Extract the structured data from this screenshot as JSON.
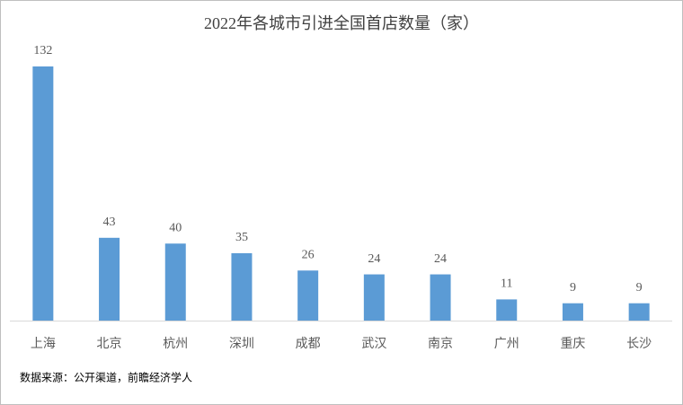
{
  "chart_data": {
    "type": "bar",
    "title": "2022年各城市引进全国首店数量（家）",
    "categories": [
      "上海",
      "北京",
      "杭州",
      "深圳",
      "成都",
      "武汉",
      "南京",
      "广州",
      "重庆",
      "长沙"
    ],
    "values": [
      132,
      43,
      40,
      35,
      26,
      24,
      24,
      11,
      9,
      9
    ],
    "color": "#5b9bd5",
    "source": "数据来源：公开渠道，前瞻经济学人"
  }
}
